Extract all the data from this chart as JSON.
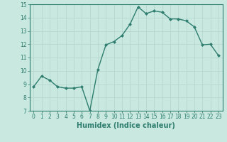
{
  "x": [
    0,
    1,
    2,
    3,
    4,
    5,
    6,
    7,
    8,
    9,
    10,
    11,
    12,
    13,
    14,
    15,
    16,
    17,
    18,
    19,
    20,
    21,
    22,
    23
  ],
  "y": [
    8.8,
    9.6,
    9.3,
    8.8,
    8.7,
    8.7,
    8.8,
    7.0,
    10.1,
    11.95,
    12.2,
    12.65,
    13.5,
    14.8,
    14.3,
    14.5,
    14.4,
    13.9,
    13.9,
    13.75,
    13.3,
    11.95,
    12.0,
    11.15
  ],
  "line_color": "#2e7d6e",
  "bg_color": "#c8e8e0",
  "grid_color": "#b5d8d0",
  "xlabel": "Humidex (Indice chaleur)",
  "xlim": [
    -0.5,
    23.5
  ],
  "ylim": [
    7,
    15
  ],
  "yticks": [
    7,
    8,
    9,
    10,
    11,
    12,
    13,
    14,
    15
  ],
  "xticks": [
    0,
    1,
    2,
    3,
    4,
    5,
    6,
    7,
    8,
    9,
    10,
    11,
    12,
    13,
    14,
    15,
    16,
    17,
    18,
    19,
    20,
    21,
    22,
    23
  ],
  "marker": "D",
  "markersize": 2.0,
  "linewidth": 1.0,
  "tick_fontsize": 5.5,
  "xlabel_fontsize": 7.0,
  "tick_color": "#2e7d6e",
  "label_color": "#2e7d6e",
  "spine_color": "#2e7d6e"
}
